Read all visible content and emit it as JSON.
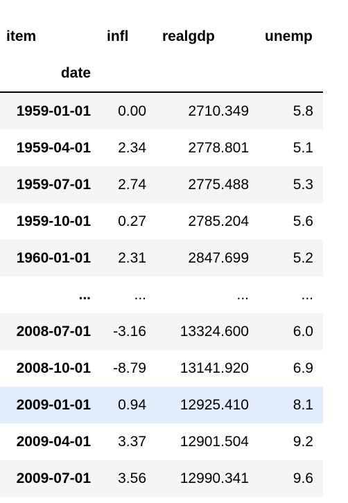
{
  "table": {
    "columns_name": "item",
    "index_name": "date",
    "columns": [
      "infl",
      "realgdp",
      "unemp"
    ],
    "rows": [
      {
        "date": "1959-01-01",
        "infl": "0.00",
        "realgdp": "2710.349",
        "unemp": "5.8"
      },
      {
        "date": "1959-04-01",
        "infl": "2.34",
        "realgdp": "2778.801",
        "unemp": "5.1"
      },
      {
        "date": "1959-07-01",
        "infl": "2.74",
        "realgdp": "2775.488",
        "unemp": "5.3"
      },
      {
        "date": "1959-10-01",
        "infl": "0.27",
        "realgdp": "2785.204",
        "unemp": "5.6"
      },
      {
        "date": "1960-01-01",
        "infl": "2.31",
        "realgdp": "2847.699",
        "unemp": "5.2"
      },
      {
        "date": "...",
        "infl": "...",
        "realgdp": "...",
        "unemp": "..."
      },
      {
        "date": "2008-07-01",
        "infl": "-3.16",
        "realgdp": "13324.600",
        "unemp": "6.0"
      },
      {
        "date": "2008-10-01",
        "infl": "-8.79",
        "realgdp": "13141.920",
        "unemp": "6.9"
      },
      {
        "date": "2009-01-01",
        "infl": "0.94",
        "realgdp": "12925.410",
        "unemp": "8.1"
      },
      {
        "date": "2009-04-01",
        "infl": "3.37",
        "realgdp": "12901.504",
        "unemp": "9.2"
      },
      {
        "date": "2009-07-01",
        "infl": "3.56",
        "realgdp": "12990.341",
        "unemp": "9.6"
      }
    ],
    "highlighted_row": 8
  },
  "colors": {
    "stripe": "#f5f5f5",
    "hover_row": "#e1edfb",
    "header_rule": "#000000"
  }
}
